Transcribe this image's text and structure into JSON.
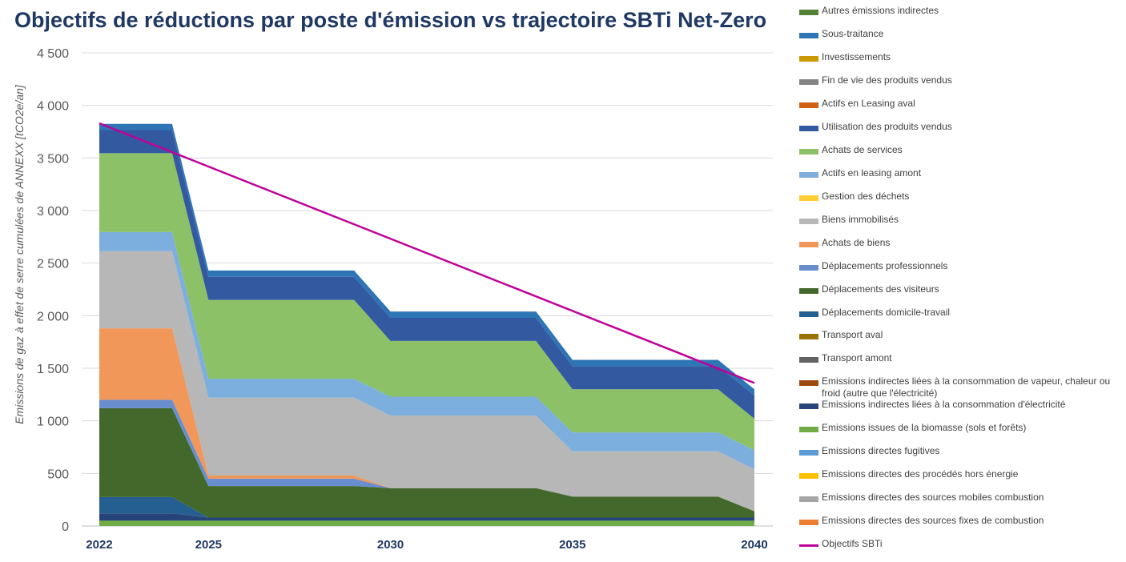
{
  "chart_data": {
    "type": "area",
    "stacked": true,
    "title": "Objectifs de réductions par poste d'émission vs trajectoire SBTi Net-Zero",
    "ylabel": "Emissions de gaz à effet de serre cumulées de ANNEXX [tCO2e/an]",
    "xlabel": "",
    "ylim": [
      0,
      4500
    ],
    "yticks": [
      "4 500",
      "4 000",
      "3 500",
      "3 000",
      "2 500",
      "2 000",
      "1 500",
      "1 000",
      "500",
      "0"
    ],
    "ytick_values": [
      4500,
      4000,
      3500,
      3000,
      2500,
      2000,
      1500,
      1000,
      500,
      0
    ],
    "xlim": [
      2022,
      2040
    ],
    "xticks": [
      "2022",
      "2025",
      "2030",
      "2035",
      "2040"
    ],
    "xtick_values": [
      2022,
      2025,
      2030,
      2035,
      2040
    ],
    "x": [
      2022,
      2024,
      2025,
      2029,
      2030,
      2034,
      2035,
      2039,
      2040
    ],
    "grid": true,
    "legend_position": "right",
    "series": [
      {
        "name": "Emissions directes des sources fixes de combustion",
        "color": "#ed7d31",
        "values": [
          0,
          0,
          0,
          0,
          0,
          0,
          0,
          0,
          0
        ]
      },
      {
        "name": "Emissions directes des sources mobiles combustion",
        "color": "#a5a5a5",
        "values": [
          0,
          0,
          0,
          0,
          0,
          0,
          0,
          0,
          0
        ]
      },
      {
        "name": "Emissions directes des procédés hors énergie",
        "color": "#ffc000",
        "values": [
          0,
          0,
          0,
          0,
          0,
          0,
          0,
          0,
          0
        ]
      },
      {
        "name": "Emissions directes fugitives",
        "color": "#5b9bd5",
        "values": [
          0,
          0,
          0,
          0,
          0,
          0,
          0,
          0,
          0
        ]
      },
      {
        "name": "Emissions issues de la biomasse (sols et forêts)",
        "color": "#70ad47",
        "values": [
          50,
          50,
          50,
          50,
          50,
          50,
          50,
          50,
          50
        ]
      },
      {
        "name": "Emissions indirectes liées à la consommation d'électricité",
        "color": "#264478",
        "values": [
          70,
          70,
          30,
          30,
          30,
          30,
          30,
          30,
          30
        ]
      },
      {
        "name": "Emissions indirectes liées à la consommation de vapeur, chaleur ou froid (autre que l'électricité)",
        "color": "#9e480e",
        "values": [
          0,
          0,
          0,
          0,
          0,
          0,
          0,
          0,
          0
        ]
      },
      {
        "name": "Transport amont",
        "color": "#636363",
        "values": [
          0,
          0,
          0,
          0,
          0,
          0,
          0,
          0,
          0
        ]
      },
      {
        "name": "Transport aval",
        "color": "#997300",
        "values": [
          0,
          0,
          0,
          0,
          0,
          0,
          0,
          0,
          0
        ]
      },
      {
        "name": "Déplacements domicile-travail",
        "color": "#255e91",
        "values": [
          155,
          155,
          0,
          0,
          0,
          0,
          0,
          0,
          0
        ]
      },
      {
        "name": "Déplacements des visiteurs",
        "color": "#43682b",
        "values": [
          845,
          845,
          300,
          300,
          280,
          280,
          200,
          200,
          60
        ]
      },
      {
        "name": "Déplacements professionnels",
        "color": "#698ed0",
        "values": [
          80,
          80,
          70,
          70,
          0,
          0,
          0,
          0,
          0
        ]
      },
      {
        "name": "Achats de biens",
        "color": "#f1975a",
        "values": [
          680,
          680,
          30,
          30,
          0,
          0,
          0,
          0,
          0
        ]
      },
      {
        "name": "Biens immobilisés",
        "color": "#b7b7b7",
        "values": [
          735,
          735,
          740,
          740,
          690,
          690,
          430,
          430,
          400
        ]
      },
      {
        "name": "Gestion des déchets",
        "color": "#ffcd33",
        "values": [
          0,
          0,
          0,
          0,
          0,
          0,
          0,
          0,
          0
        ]
      },
      {
        "name": "Actifs en leasing amont",
        "color": "#7cafdd",
        "values": [
          180,
          180,
          180,
          180,
          180,
          180,
          180,
          180,
          180
        ]
      },
      {
        "name": "Achats de services",
        "color": "#8cc168",
        "values": [
          750,
          750,
          750,
          750,
          530,
          530,
          410,
          410,
          300
        ]
      },
      {
        "name": "Utilisation des produits vendus",
        "color": "#335aa1",
        "values": [
          220,
          220,
          220,
          220,
          220,
          220,
          220,
          220,
          220
        ]
      },
      {
        "name": "Actifs en Leasing aval",
        "color": "#d26012",
        "values": [
          0,
          0,
          0,
          0,
          0,
          0,
          0,
          0,
          0
        ]
      },
      {
        "name": "Fin de vie des produits vendus",
        "color": "#848484",
        "values": [
          0,
          0,
          0,
          0,
          0,
          0,
          0,
          0,
          0
        ]
      },
      {
        "name": "Investissements",
        "color": "#cc9a00",
        "values": [
          0,
          0,
          0,
          0,
          0,
          0,
          0,
          0,
          0
        ]
      },
      {
        "name": "Sous-traitance",
        "color": "#2e75b6",
        "values": [
          60,
          60,
          60,
          60,
          60,
          60,
          60,
          60,
          60
        ]
      },
      {
        "name": "Autres émissions indirectes",
        "color": "#548235",
        "values": [
          0,
          0,
          0,
          0,
          0,
          0,
          0,
          0,
          0
        ]
      }
    ],
    "line_series": [
      {
        "name": "Objectifs SBTi",
        "color": "#c0009a",
        "x": [
          2022,
          2040
        ],
        "values": [
          3830,
          1360
        ]
      }
    ],
    "legend_order": [
      "Autres émissions indirectes",
      "Sous-traitance",
      "Investissements",
      "Fin de vie des produits vendus",
      "Actifs en Leasing aval",
      "Utilisation des produits vendus",
      "Achats de services",
      "Actifs en leasing amont",
      "Gestion des déchets",
      "Biens immobilisés",
      "Achats de biens",
      "Déplacements professionnels",
      "Déplacements des visiteurs",
      "Déplacements domicile-travail",
      "Transport aval",
      "Transport amont",
      "Emissions indirectes liées à la consommation de vapeur, chaleur ou froid (autre que l'électricité)",
      "Emissions indirectes liées à la consommation d'électricité",
      "Emissions issues de la biomasse (sols et forêts)",
      "Emissions directes fugitives",
      "Emissions directes des procédés hors énergie",
      "Emissions directes des sources mobiles combustion",
      "Emissions directes des sources fixes de combustion",
      "Objectifs SBTi"
    ]
  }
}
